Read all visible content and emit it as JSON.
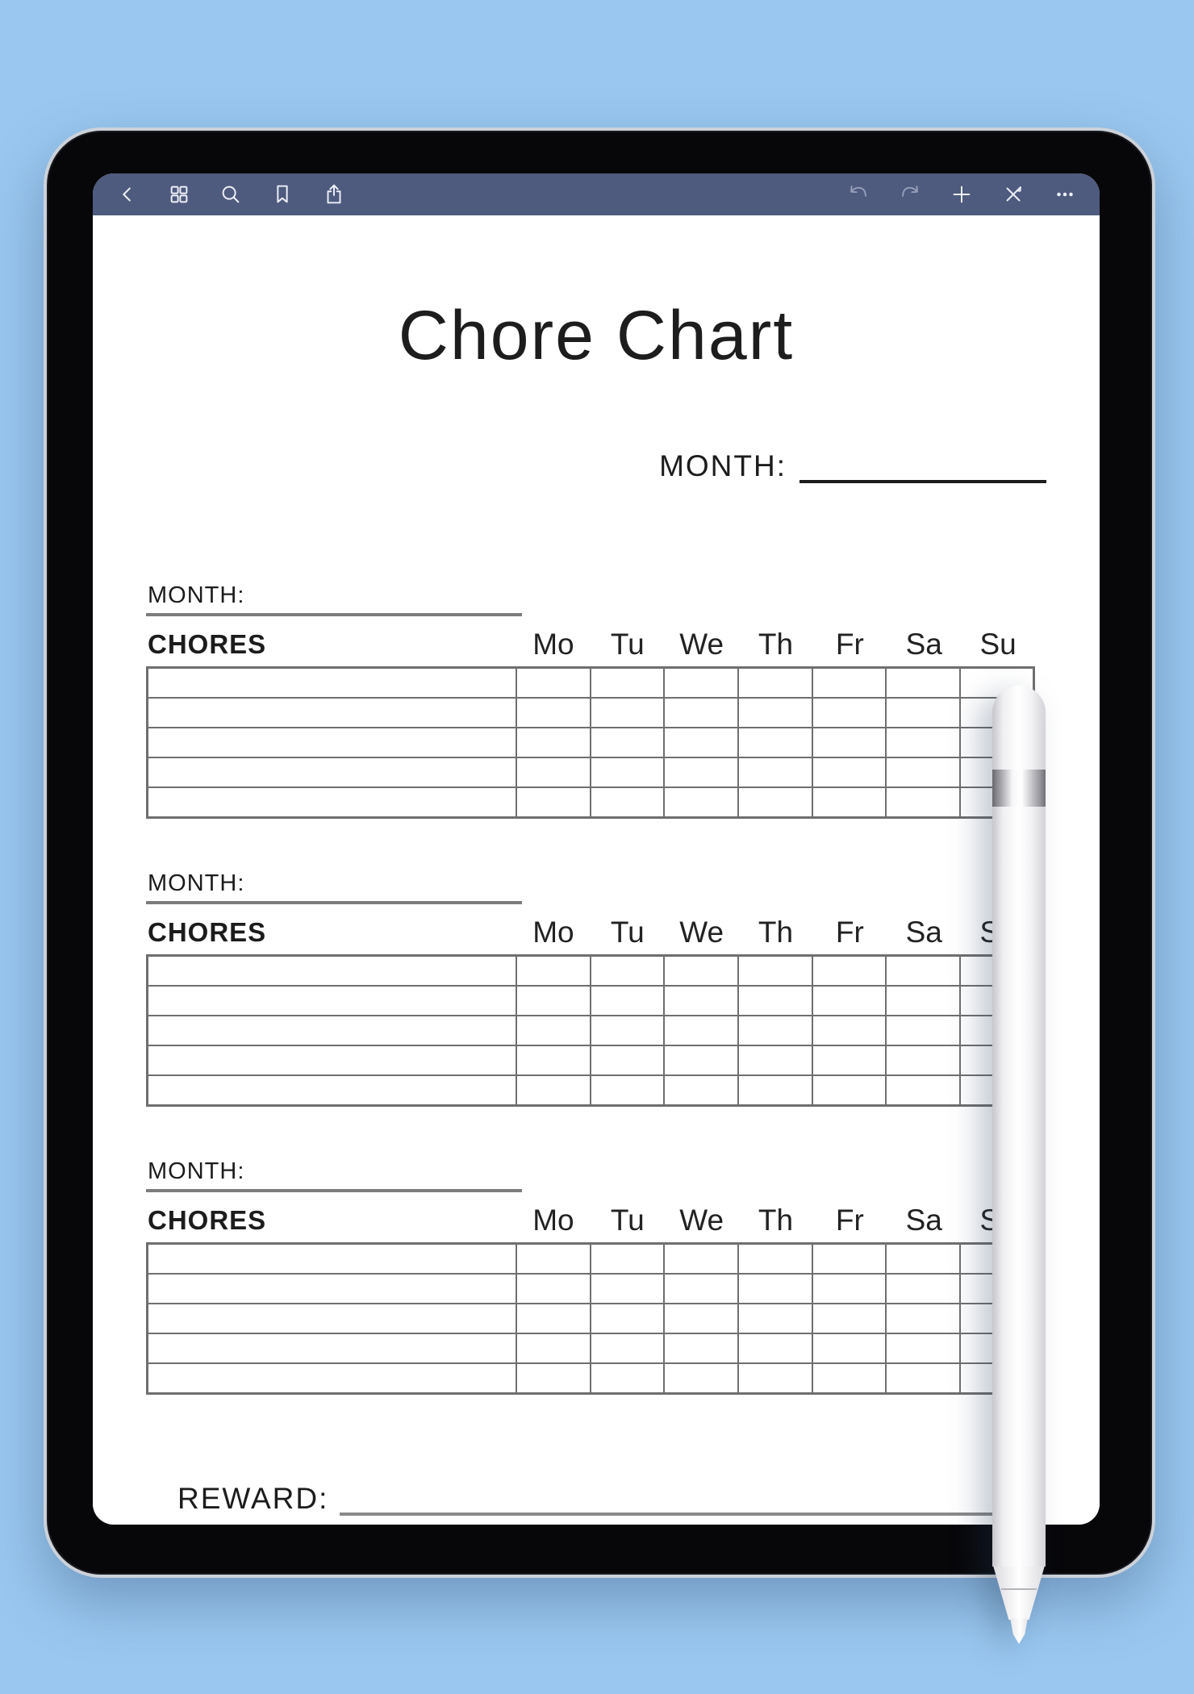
{
  "colors": {
    "background": "#99c7ef",
    "toolbar": "#4e5a7e",
    "page": "#ffffff",
    "table_border": "#6f6f6f",
    "section_underline": "#7d7d7d",
    "text": "#1c1c1c"
  },
  "toolbar": {
    "left_icons": [
      {
        "id": "back",
        "label": "Back"
      },
      {
        "id": "pages",
        "label": "Pages"
      },
      {
        "id": "search",
        "label": "Search"
      },
      {
        "id": "bookmark",
        "label": "Bookmark"
      },
      {
        "id": "share",
        "label": "Share"
      }
    ],
    "right_icons": [
      {
        "id": "undo",
        "label": "Undo",
        "enabled": false
      },
      {
        "id": "redo",
        "label": "Redo",
        "enabled": false
      },
      {
        "id": "add",
        "label": "Add",
        "enabled": true
      },
      {
        "id": "pen",
        "label": "Pen mode",
        "enabled": true
      },
      {
        "id": "more",
        "label": "More",
        "enabled": true
      }
    ]
  },
  "page": {
    "title": "Chore Chart",
    "month_field_label": "MONTH:",
    "days": [
      "Mo",
      "Tu",
      "We",
      "Th",
      "Fr",
      "Sa",
      "Su"
    ],
    "sections": [
      {
        "month_label": "MONTH:",
        "chores_label": "CHORES",
        "rows": 5
      },
      {
        "month_label": "MONTH:",
        "chores_label": "CHORES",
        "rows": 5
      },
      {
        "month_label": "MONTH:",
        "chores_label": "CHORES",
        "rows": 5
      }
    ],
    "reward_label": "REWARD:"
  }
}
